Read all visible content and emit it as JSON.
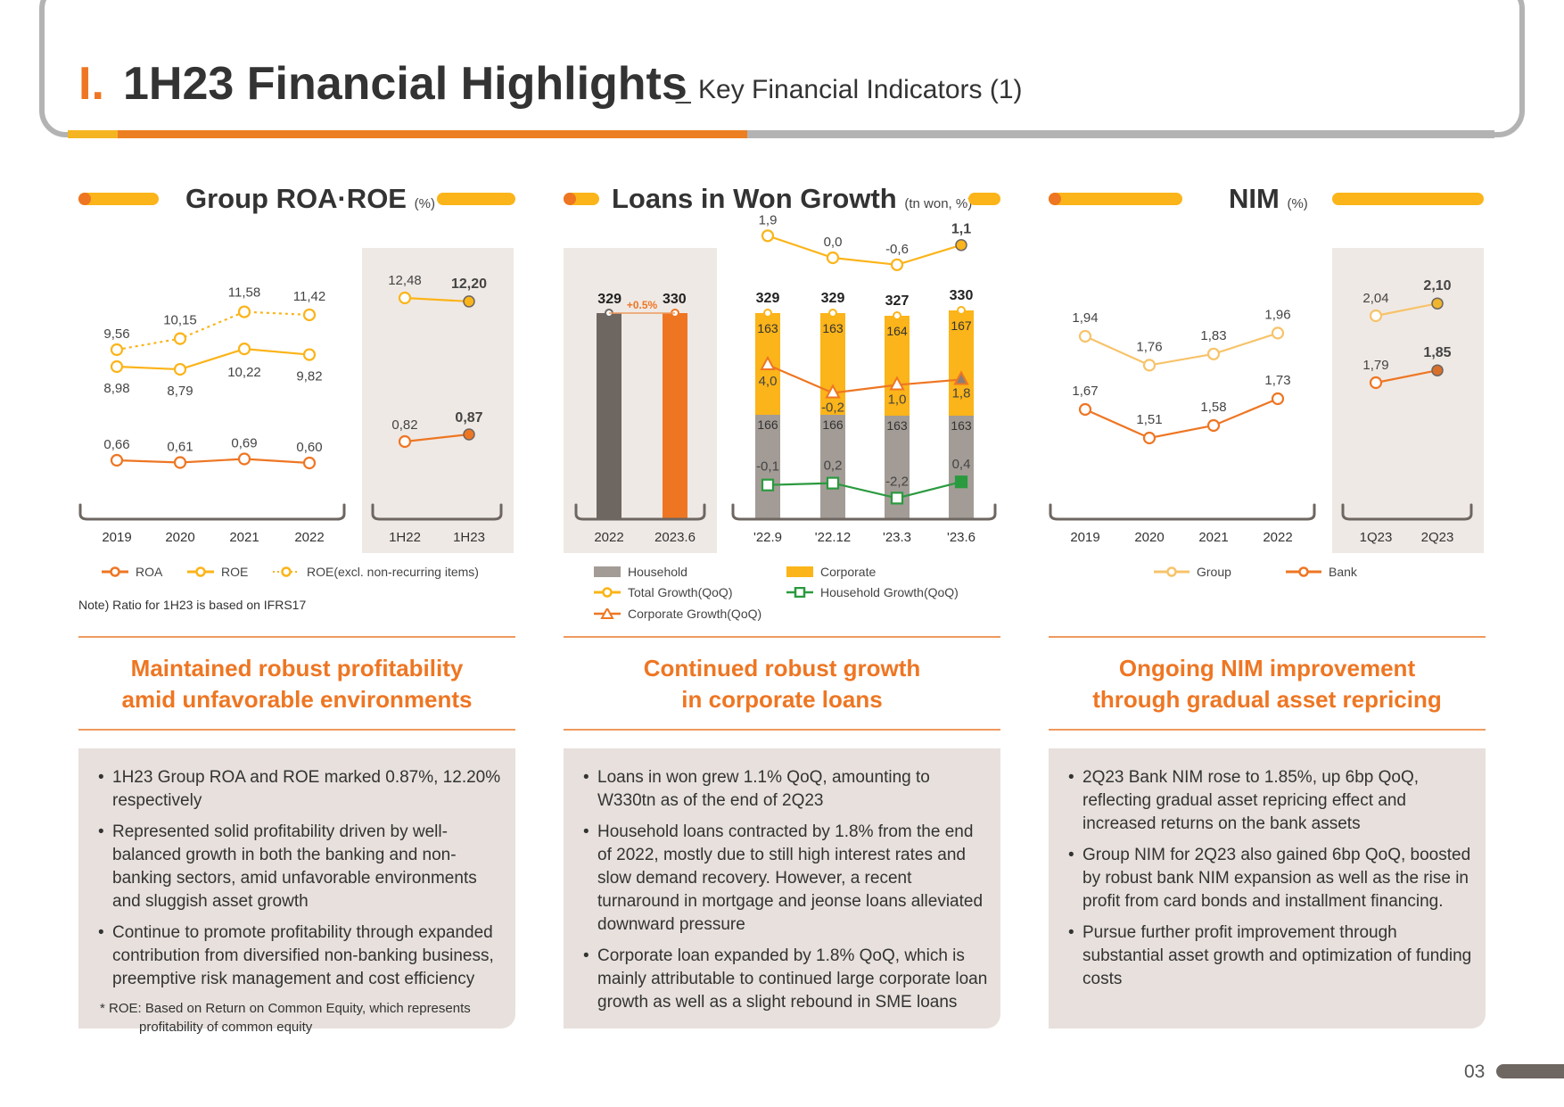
{
  "header": {
    "roman": "I.",
    "title": "1H23 Financial Highlights",
    "subtitle": "_ Key Financial Indicators (1)"
  },
  "panels": [
    {
      "title": "Group ROA·ROE",
      "unit": "(%)",
      "legend": [
        "ROA",
        "ROE",
        "ROE(excl. non-recurring items)"
      ],
      "note": "Note) Ratio for 1H23 is based on IFRS17",
      "headline": [
        "Maintained robust profitability",
        "amid unfavorable environments"
      ],
      "bullets": [
        "1H23 Group ROA and ROE marked 0.87%, 12.20% respectively",
        "Represented solid profitability driven by well-balanced growth in both the banking and non-banking sectors, amid unfavorable environments and sluggish asset growth",
        "Continue to promote profitability through expanded contribution from diversified non-banking business, preemptive risk management and cost efficiency"
      ],
      "footnote": [
        "* ROE: Based on Return on Common Equity, which represents",
        "profitability of common equity"
      ]
    },
    {
      "title": "Loans in Won Growth",
      "unit": "(tn won, %)",
      "legend": [
        "Household",
        "Corporate",
        "Total Growth(QoQ)",
        "Household Growth(QoQ)",
        "Corporate Growth(QoQ)"
      ],
      "headline": [
        "Continued robust growth",
        "in corporate loans"
      ],
      "bullets": [
        "Loans in won grew 1.1% QoQ, amounting to W330tn as of the end of 2Q23",
        "Household loans contracted by 1.8% from the end of 2022, mostly due to still high interest rates and slow demand recovery. However, a recent turnaround in mortgage and jeonse loans alleviated downward pressure",
        "Corporate loan expanded by 1.8% QoQ, which is mainly attributable to continued large corporate loan growth as well as a slight rebound in SME loans"
      ]
    },
    {
      "title": "NIM",
      "unit": "(%)",
      "legend": [
        "Group",
        "Bank"
      ],
      "headline": [
        "Ongoing NIM improvement",
        "through gradual asset repricing"
      ],
      "bullets": [
        "2Q23 Bank NIM rose to 1.85%, up 6bp QoQ, reflecting gradual asset repricing effect and increased returns on the bank assets",
        "Group NIM for 2Q23 also gained 6bp QoQ, boosted by robust bank NIM expansion as well as the rise in profit from card bonds and installment financing.",
        "Pursue further profit improvement through substantial asset growth and optimization of funding costs"
      ]
    }
  ],
  "page_number": "03",
  "colors": {
    "orange": "#ee7623",
    "yellow": "#fbb419",
    "lightyellow": "#f7c36a",
    "gray": "#6e6661",
    "barGray": "#a39c96",
    "green": "#2a9a3f"
  },
  "chart_data": [
    {
      "type": "line",
      "title": "Group ROA·ROE",
      "unit": "(%)",
      "groups": [
        {
          "x": [
            "2019",
            "2020",
            "2021",
            "2022"
          ],
          "series": [
            {
              "name": "ROE(excl. non-recurring items)",
              "values": [
                9.56,
                10.15,
                11.58,
                11.42
              ],
              "labels": [
                "9.56",
                "10.15",
                "11.58",
                "11.42"
              ]
            },
            {
              "name": "ROE",
              "values": [
                8.98,
                8.79,
                10.22,
                9.82
              ],
              "labels": [
                "8.98",
                "8.79",
                "10.22",
                "9.82"
              ]
            },
            {
              "name": "ROA",
              "values": [
                0.66,
                0.61,
                0.69,
                0.6
              ],
              "labels": [
                "0.66",
                "0.61",
                "0.69",
                "0.60"
              ]
            }
          ]
        },
        {
          "x": [
            "1H22",
            "1H23"
          ],
          "series": [
            {
              "name": "ROE",
              "values": [
                12.48,
                12.2
              ],
              "labels": [
                "12.48",
                "12.20"
              ]
            },
            {
              "name": "ROA",
              "values": [
                0.82,
                0.87
              ],
              "labels": [
                "0.82",
                "0.87"
              ]
            }
          ]
        }
      ]
    },
    {
      "type": "bar",
      "title": "Loans in Won Growth",
      "unit": "(tn won, %)",
      "annual": {
        "categories": [
          "2022",
          "2023.6"
        ],
        "values": [
          329,
          330
        ],
        "labels": [
          "329",
          "330"
        ],
        "change_label": "+0.5%"
      },
      "quarterly": {
        "categories": [
          "'22.9",
          "'22.12",
          "'23.3",
          "'23.6"
        ],
        "totals": [
          329,
          329,
          327,
          330
        ],
        "total_labels": [
          "329",
          "329",
          "327",
          "330"
        ],
        "series": [
          {
            "name": "Household",
            "values": [
              166,
              166,
              163,
              163
            ],
            "labels": [
              "166",
              "166",
              "163",
              "163"
            ]
          },
          {
            "name": "Corporate",
            "values": [
              163,
              163,
              164,
              167
            ],
            "labels": [
              "163",
              "163",
              "164",
              "167"
            ]
          }
        ],
        "growth": [
          {
            "name": "Total Growth(QoQ)",
            "values": [
              1.9,
              0.0,
              -0.6,
              1.1
            ],
            "labels": [
              "1.9",
              "0.0",
              "-0.6",
              "1.1"
            ]
          },
          {
            "name": "Corporate Growth(QoQ)",
            "values": [
              4.0,
              -0.2,
              1.0,
              1.8
            ],
            "labels": [
              "4.0",
              "-0.2",
              "1.0",
              "1.8"
            ]
          },
          {
            "name": "Household Growth(QoQ)",
            "values": [
              -0.1,
              0.2,
              -2.2,
              0.4
            ],
            "labels": [
              "-0.1",
              "0.2",
              "-2.2",
              "0.4"
            ]
          }
        ]
      }
    },
    {
      "type": "line",
      "title": "NIM",
      "unit": "(%)",
      "groups": [
        {
          "x": [
            "2019",
            "2020",
            "2021",
            "2022"
          ],
          "series": [
            {
              "name": "Group",
              "values": [
                1.94,
                1.76,
                1.83,
                1.96
              ],
              "labels": [
                "1.94",
                "1.76",
                "1.83",
                "1.96"
              ]
            },
            {
              "name": "Bank",
              "values": [
                1.67,
                1.51,
                1.58,
                1.73
              ],
              "labels": [
                "1.67",
                "1.51",
                "1.58",
                "1.73"
              ]
            }
          ]
        },
        {
          "x": [
            "1Q23",
            "2Q23"
          ],
          "series": [
            {
              "name": "Group",
              "values": [
                2.04,
                2.1
              ],
              "labels": [
                "2.04",
                "2.10"
              ]
            },
            {
              "name": "Bank",
              "values": [
                1.79,
                1.85
              ],
              "labels": [
                "1.79",
                "1.85"
              ]
            }
          ]
        }
      ]
    }
  ]
}
